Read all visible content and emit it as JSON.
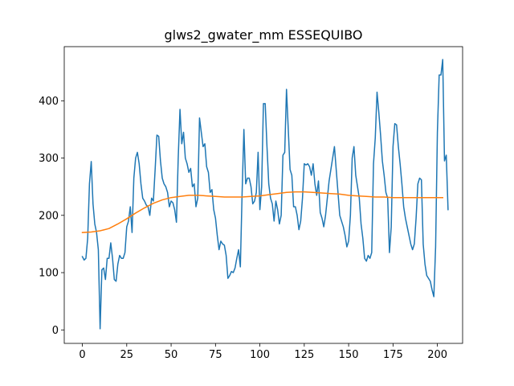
{
  "chart_data": {
    "type": "line",
    "title": "glws2_gwater_mm ESSEQUIBO",
    "xlabel": "",
    "ylabel": "",
    "xlim": [
      -10.2,
      214.2
    ],
    "ylim": [
      -23.5,
      494.5
    ],
    "xticks": [
      0,
      25,
      50,
      75,
      100,
      125,
      150,
      175,
      200
    ],
    "yticks": [
      0,
      100,
      200,
      300,
      400
    ],
    "xtick_labels": [
      "0",
      "25",
      "50",
      "75",
      "100",
      "125",
      "150",
      "175",
      "200"
    ],
    "ytick_labels": [
      "0",
      "100",
      "200",
      "300",
      "400"
    ],
    "grid": false,
    "colors": {
      "series1": "#1f77b4",
      "series2": "#ff7f0e",
      "axes": "#000000"
    },
    "series": [
      {
        "values": [
          128,
          122,
          125,
          160,
          255,
          294,
          220,
          185,
          170,
          140,
          2,
          105,
          108,
          88,
          125,
          125,
          152,
          125,
          88,
          85,
          115,
          130,
          125,
          125,
          135,
          180,
          190,
          215,
          170,
          265,
          300,
          310,
          290,
          255,
          230,
          225,
          218,
          215,
          200,
          230,
          225,
          280,
          340,
          338,
          295,
          265,
          255,
          250,
          240,
          215,
          225,
          222,
          210,
          188,
          300,
          385,
          325,
          345,
          300,
          290,
          275,
          282,
          250,
          255,
          215,
          230,
          370,
          345,
          320,
          325,
          285,
          275,
          240,
          245,
          210,
          195,
          165,
          140,
          155,
          150,
          148,
          130,
          90,
          95,
          102,
          100,
          108,
          125,
          140,
          110,
          240,
          350,
          255,
          265,
          265,
          250,
          220,
          225,
          240,
          310,
          210,
          250,
          395,
          395,
          320,
          255,
          230,
          220,
          190,
          225,
          210,
          185,
          200,
          305,
          310,
          420,
          350,
          280,
          270,
          215,
          215,
          200,
          175,
          190,
          230,
          290,
          288,
          290,
          285,
          270,
          290,
          255,
          235,
          260,
          205,
          195,
          180,
          200,
          230,
          260,
          280,
          300,
          320,
          280,
          240,
          200,
          190,
          180,
          165,
          145,
          155,
          200,
          300,
          320,
          270,
          250,
          230,
          185,
          160,
          125,
          120,
          130,
          125,
          135,
          290,
          335,
          415,
          380,
          340,
          295,
          270,
          240,
          230,
          135,
          180,
          320,
          360,
          358,
          320,
          290,
          255,
          215,
          195,
          180,
          165,
          150,
          140,
          150,
          195,
          255,
          265,
          262,
          150,
          115,
          95,
          90,
          85,
          70,
          58,
          145,
          345,
          445,
          445,
          472,
          295,
          305,
          210
        ],
        "x_start": 0
      },
      {
        "x": [
          0,
          5,
          10,
          15,
          20,
          25,
          30,
          35,
          40,
          45,
          50,
          55,
          60,
          65,
          70,
          75,
          80,
          85,
          90,
          95,
          100,
          105,
          110,
          115,
          120,
          125,
          130,
          135,
          140,
          145,
          150,
          155,
          160,
          165,
          170,
          175,
          180,
          185,
          190,
          195,
          200,
          203
        ],
        "values": [
          170,
          171,
          173,
          177,
          185,
          194,
          204,
          213,
          221,
          227,
          231,
          233,
          235,
          235,
          234,
          233,
          232,
          232,
          232,
          233,
          234,
          236,
          238,
          240,
          241,
          241,
          240,
          239,
          238,
          237,
          235,
          234,
          233,
          232,
          232,
          231,
          231,
          231,
          231,
          231,
          231,
          231
        ]
      }
    ]
  }
}
